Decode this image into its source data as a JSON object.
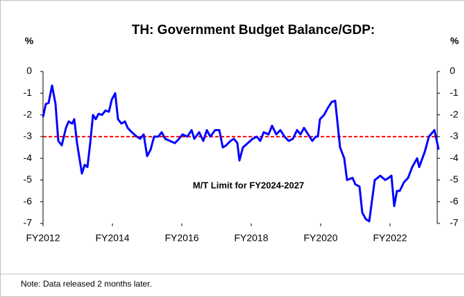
{
  "chart_data": {
    "type": "line",
    "title": "TH: Government Budget Balance/GDP:",
    "y_label": "%",
    "y2_label": "%",
    "note": "Note: Data released 2 months later.",
    "xlim": [
      2012,
      2023.36
    ],
    "xticks": [
      {
        "value": 2012,
        "label": "FY2012"
      },
      {
        "value": 2014,
        "label": "FY2014"
      },
      {
        "value": 2016,
        "label": "FY2016"
      },
      {
        "value": 2018,
        "label": "FY2018"
      },
      {
        "value": 2020,
        "label": "FY2020"
      },
      {
        "value": 2022,
        "label": "FY2022"
      }
    ],
    "ylim": [
      -7,
      0
    ],
    "yticks": [
      0,
      -1,
      -2,
      -3,
      -4,
      -5,
      -6,
      -7
    ],
    "y2lim": [
      -7,
      0
    ],
    "y2ticks": [
      0,
      -1,
      -2,
      -3,
      -4,
      -5,
      -6,
      -7
    ],
    "reference": {
      "value": -3,
      "label": "M/T Limit for FY2024-2027",
      "color": "#ff0000"
    },
    "x": [
      2012,
      2012.08,
      2012.16,
      2012.26,
      2012.36,
      2012.44,
      2012.54,
      2012.66,
      2012.74,
      2012.84,
      2012.9,
      2012.98,
      2013.12,
      2013.2,
      2013.28,
      2013.36,
      2013.44,
      2013.52,
      2013.6,
      2013.7,
      2013.8,
      2013.9,
      2013.98,
      2014.08,
      2014.16,
      2014.26,
      2014.36,
      2014.44,
      2014.56,
      2014.7,
      2014.8,
      2014.9,
      2015,
      2015.1,
      2015.2,
      2015.32,
      2015.42,
      2015.52,
      2015.66,
      2015.8,
      2015.92,
      2016.02,
      2016.16,
      2016.28,
      2016.36,
      2016.5,
      2016.62,
      2016.72,
      2016.82,
      2016.96,
      2017.08,
      2017.18,
      2017.28,
      2017.4,
      2017.5,
      2017.6,
      2017.66,
      2017.76,
      2017.9,
      2018.04,
      2018.16,
      2018.26,
      2018.36,
      2018.5,
      2018.6,
      2018.72,
      2018.84,
      2018.96,
      2019.08,
      2019.2,
      2019.32,
      2019.42,
      2019.52,
      2019.64,
      2019.76,
      2019.86,
      2019.92,
      2019.98,
      2020.1,
      2020.2,
      2020.32,
      2020.42,
      2020.56,
      2020.68,
      2020.76,
      2020.92,
      2021,
      2021.12,
      2021.2,
      2021.3,
      2021.4,
      2021.5,
      2021.56,
      2021.72,
      2021.86,
      2021.96,
      2022.04,
      2022.12,
      2022.2,
      2022.28,
      2022.4,
      2022.52,
      2022.64,
      2022.78,
      2022.84,
      2023,
      2023.12,
      2023.28,
      2023.32,
      2023.4
    ],
    "series": [
      {
        "color": "#0000ff",
        "values": [
          -2.1,
          -1.5,
          -1.45,
          -0.65,
          -1.5,
          -3.2,
          -3.4,
          -2.6,
          -2.3,
          -2.4,
          -2.2,
          -3.3,
          -4.7,
          -4.3,
          -4.4,
          -3.3,
          -2.0,
          -2.2,
          -1.95,
          -2.0,
          -1.8,
          -1.85,
          -1.3,
          -1.0,
          -2.2,
          -2.4,
          -2.3,
          -2.6,
          -2.8,
          -3.0,
          -3.1,
          -2.9,
          -3.9,
          -3.6,
          -3.0,
          -3.0,
          -2.8,
          -3.1,
          -3.2,
          -3.3,
          -3.1,
          -2.9,
          -3.0,
          -2.7,
          -3.1,
          -2.8,
          -3.2,
          -2.7,
          -3.0,
          -2.7,
          -2.7,
          -3.5,
          -3.4,
          -3.2,
          -3.1,
          -3.3,
          -4.1,
          -3.5,
          -3.3,
          -3.1,
          -3.0,
          -3.2,
          -2.8,
          -2.9,
          -2.5,
          -2.9,
          -2.7,
          -3.0,
          -3.2,
          -3.1,
          -2.7,
          -2.9,
          -2.6,
          -2.9,
          -3.2,
          -3.0,
          -3.0,
          -2.2,
          -2.0,
          -1.7,
          -1.4,
          -1.35,
          -3.5,
          -4.0,
          -5.0,
          -4.9,
          -5.2,
          -5.3,
          -6.5,
          -6.8,
          -6.9,
          -5.7,
          -5.0,
          -4.8,
          -5.0,
          -4.9,
          -4.8,
          -6.2,
          -5.5,
          -5.5,
          -5.1,
          -4.9,
          -4.4,
          -4.0,
          -4.4,
          -3.7,
          -3.0,
          -2.7,
          -3.0,
          -3.6
        ]
      }
    ]
  }
}
